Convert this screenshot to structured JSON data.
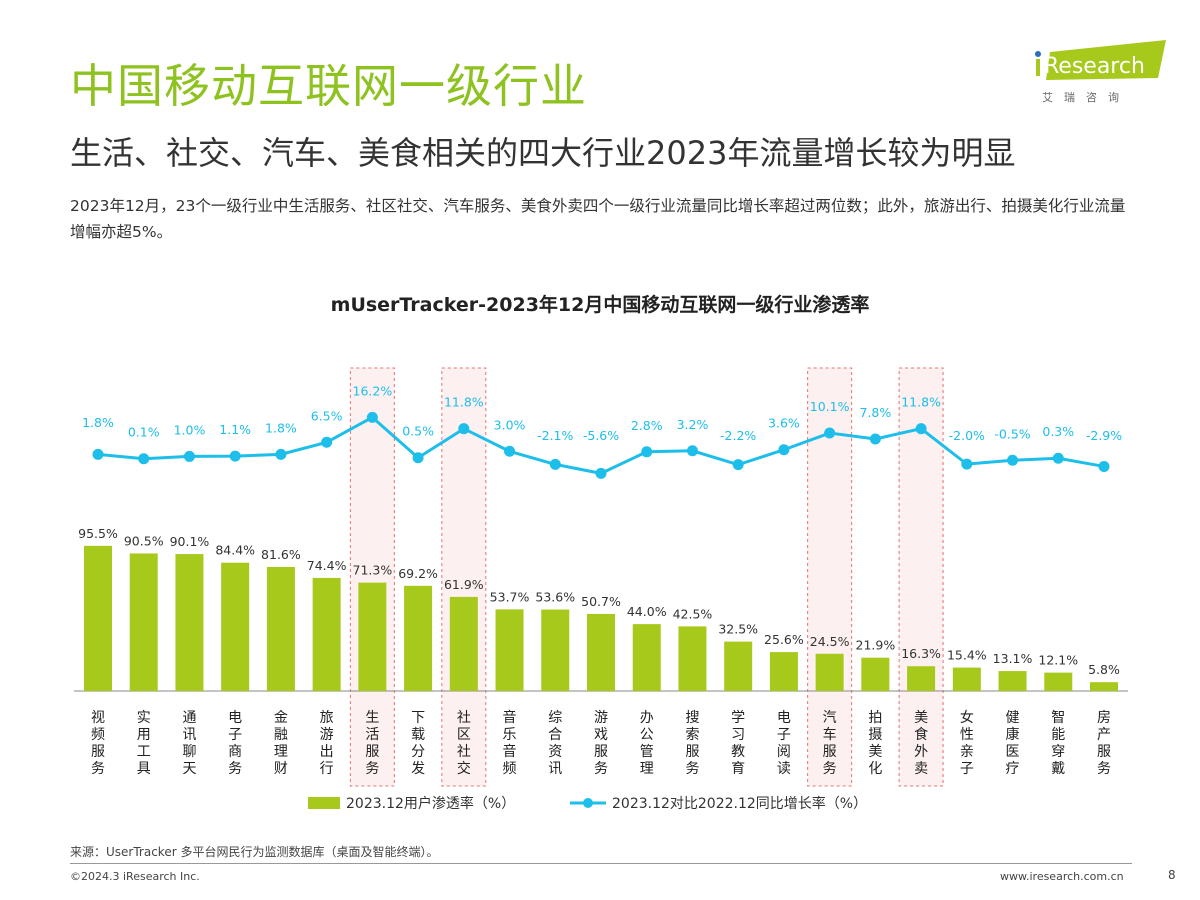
{
  "header": {
    "title": "中国移动互联网一级行业",
    "subtitle": "生活、社交、汽车、美食相关的四大行业2023年流量增长较为明显",
    "description": "2023年12月，23个一级行业中生活服务、社区社交、汽车服务、美食外卖四个一级行业流量同比增长率超过两位数；此外，旅游出行、拍摄美化行业流量增幅亦超5%。"
  },
  "logo": {
    "brand": "iResearch",
    "chinese": "艾 瑞 咨 询"
  },
  "chart_data": {
    "type": "bar+line",
    "title": "mUserTracker-2023年12月中国移动互联网一级行业渗透率",
    "categories": [
      "视频服务",
      "实用工具",
      "通讯聊天",
      "电子商务",
      "金融理财",
      "旅游出行",
      "生活服务",
      "下载分发",
      "社区社交",
      "音乐音频",
      "综合资讯",
      "游戏服务",
      "办公管理",
      "搜索服务",
      "学习教育",
      "电子阅读",
      "汽车服务",
      "拍摄美化",
      "美食外卖",
      "女性亲子",
      "健康医疗",
      "智能穿戴",
      "房产服务"
    ],
    "series": [
      {
        "name": "2023.12用户渗透率（%）",
        "type": "bar",
        "color": "#A6C91C",
        "values": [
          95.5,
          90.5,
          90.1,
          84.4,
          81.6,
          74.4,
          71.3,
          69.2,
          61.9,
          53.7,
          53.6,
          50.7,
          44.0,
          42.5,
          32.5,
          25.6,
          24.5,
          21.9,
          16.3,
          15.4,
          13.1,
          12.1,
          5.8
        ]
      },
      {
        "name": "2023.12对比2022.12同比增长率（%）",
        "type": "line",
        "color": "#1DBEEA",
        "values": [
          1.8,
          0.1,
          1.0,
          1.1,
          1.8,
          6.5,
          16.2,
          0.5,
          11.8,
          3.0,
          -2.1,
          -5.6,
          2.8,
          3.2,
          -2.2,
          3.6,
          10.1,
          7.8,
          11.8,
          -2.0,
          -0.5,
          0.3,
          -2.9
        ]
      }
    ],
    "highlighted_categories": [
      "生活服务",
      "社区社交",
      "汽车服务",
      "美食外卖"
    ],
    "highlight_color": "#E57373",
    "legend": "bottom",
    "grid": false
  },
  "footer": {
    "source": "来源：UserTracker 多平台网民行为监测数据库（桌面及智能终端）。",
    "copyright": "©2024.3 iResearch Inc.",
    "website": "www.iresearch.com.cn",
    "page": "8"
  }
}
